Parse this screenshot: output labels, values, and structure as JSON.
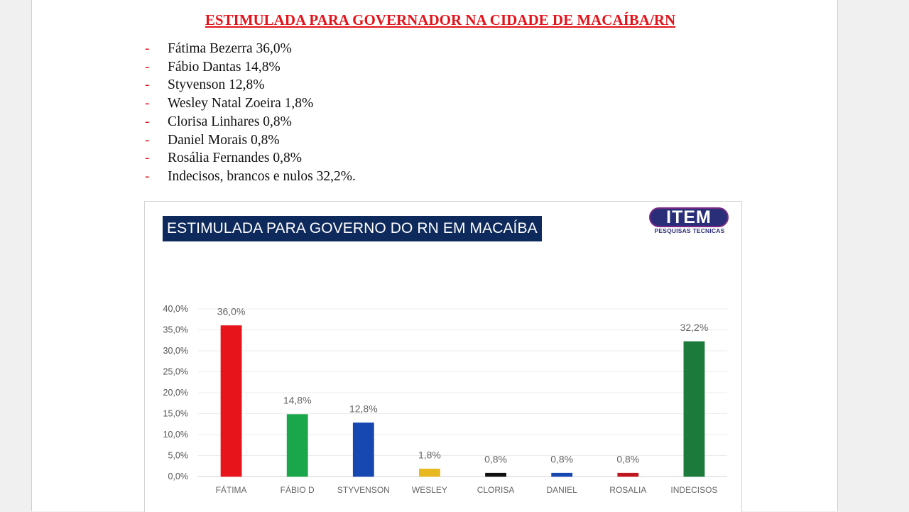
{
  "document": {
    "title": "ESTIMULADA PARA GOVERNADOR NA CIDADE DE MACAÍBA/RN",
    "results": [
      "Fátima Bezerra 36,0%",
      "Fábio Dantas 14,8%",
      "Styvenson 12,8%",
      "Wesley Natal Zoeira 1,8%",
      "Clorisa Linhares 0,8%",
      "Daniel Morais 0,8%",
      "Rosália Fernandes 0,8%",
      "Indecisos, brancos e nulos 32,2%."
    ],
    "bullet": "-"
  },
  "logo": {
    "name": "ITEM",
    "tagline": "PESQUISAS TECNICAS"
  },
  "chart_data": {
    "type": "bar",
    "title": "ESTIMULADA PARA GOVERNO DO RN EM MACAÍBA",
    "categories": [
      "FÁTIMA",
      "FÁBIO D",
      "STYVENSON",
      "WESLEY",
      "CLORISA",
      "DANIEL",
      "ROSALIA",
      "INDECISOS"
    ],
    "values": [
      36.0,
      14.8,
      12.8,
      1.8,
      0.8,
      0.8,
      0.8,
      32.2
    ],
    "data_labels": [
      "36,0%",
      "14,8%",
      "12,8%",
      "1,8%",
      "0,8%",
      "0,8%",
      "0,8%",
      "32,2%"
    ],
    "bar_colors": [
      "#e8141c",
      "#1aa64a",
      "#1747b0",
      "#e8b820",
      "#111111",
      "#1747b0",
      "#c0161e",
      "#1c7a3a"
    ],
    "ylim": [
      0,
      40
    ],
    "yticks": [
      "0,0%",
      "5,0%",
      "10,0%",
      "15,0%",
      "20,0%",
      "25,0%",
      "30,0%",
      "35,0%",
      "40,0%"
    ],
    "xlabel": "",
    "ylabel": "",
    "grid": true,
    "legend": "none"
  }
}
